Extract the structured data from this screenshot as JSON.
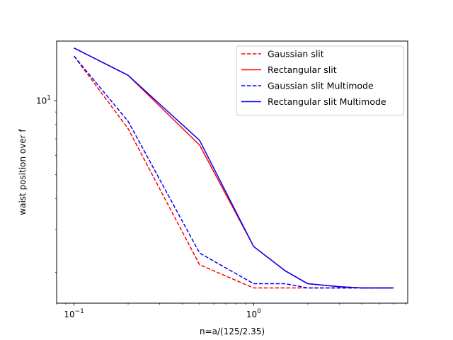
{
  "chart_data": {
    "type": "line",
    "title": "",
    "xlabel": "n=a/(125/2.35)",
    "ylabel": "waist position over f",
    "xscale": "log",
    "yscale": "log",
    "xlim": [
      0.08,
      7.2
    ],
    "ylim": [
      1.5,
      17.5
    ],
    "x_tick_labels": [
      {
        "value": 0.1,
        "base": "10",
        "exp": "−1"
      },
      {
        "value": 1,
        "base": "10",
        "exp": "0"
      }
    ],
    "y_tick_labels": [
      {
        "value": 10,
        "base": "10",
        "exp": "1"
      }
    ],
    "grid": false,
    "legend_placement": "top-right",
    "series": [
      {
        "name": "Gaussian slit",
        "color": "#ff0000",
        "dash": "dashed",
        "x": [
          0.1,
          0.2,
          0.5,
          1.0,
          1.5,
          2.0,
          3.0,
          4.0,
          6.0
        ],
        "y": [
          15.2,
          7.7,
          2.15,
          1.73,
          1.73,
          1.73,
          1.73,
          1.73,
          1.73
        ]
      },
      {
        "name": "Rectangular slit",
        "color": "#ff0000",
        "dash": "solid",
        "x": [
          0.1,
          0.2,
          0.5,
          1.0,
          1.5,
          2.0,
          3.0,
          4.0,
          6.0
        ],
        "y": [
          16.4,
          12.7,
          6.6,
          2.55,
          2.03,
          1.8,
          1.75,
          1.73,
          1.73
        ]
      },
      {
        "name": "Gaussian slit Multimode",
        "color": "#0000ff",
        "dash": "dashed",
        "x": [
          0.1,
          0.2,
          0.5,
          1.0,
          1.5,
          2.0,
          3.0,
          4.0,
          6.0
        ],
        "y": [
          15.2,
          8.25,
          2.4,
          1.8,
          1.8,
          1.73,
          1.73,
          1.73,
          1.73
        ]
      },
      {
        "name": "Rectangular slit Multimode",
        "color": "#0000ff",
        "dash": "solid",
        "x": [
          0.1,
          0.2,
          0.5,
          1.0,
          1.5,
          2.0,
          3.0,
          4.0,
          6.0
        ],
        "y": [
          16.4,
          12.7,
          6.9,
          2.55,
          2.03,
          1.8,
          1.75,
          1.73,
          1.73
        ]
      }
    ]
  }
}
